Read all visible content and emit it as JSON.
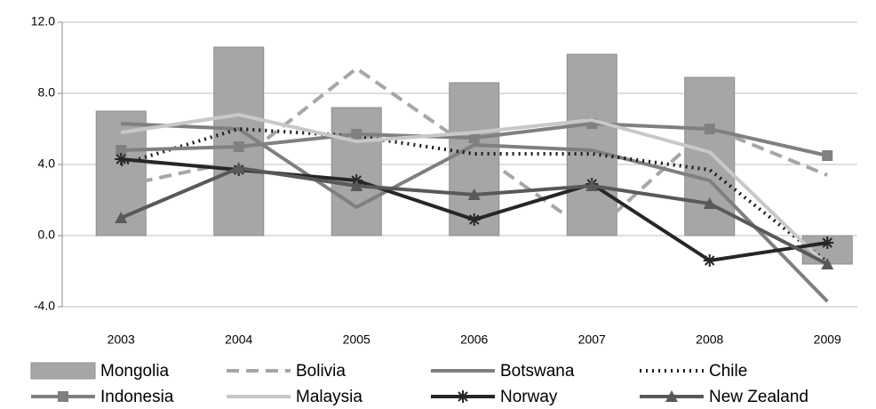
{
  "chart_data": {
    "type": "combo",
    "categories": [
      "2003",
      "2004",
      "2005",
      "2006",
      "2007",
      "2008",
      "2009"
    ],
    "ylim": [
      -4,
      12
    ],
    "yticks": [
      {
        "value": -4,
        "label": "-4.0"
      },
      {
        "value": 0,
        "label": "0.0"
      },
      {
        "value": 4,
        "label": "4.0"
      },
      {
        "value": 8,
        "label": "8.0"
      },
      {
        "value": 12,
        "label": "12.0"
      }
    ],
    "grid": true,
    "legend": "bottom",
    "series": [
      {
        "name": "Mongolia",
        "type": "bar",
        "color": "#a6a6a6",
        "values": [
          7.0,
          10.6,
          7.2,
          8.6,
          10.2,
          8.9,
          -1.6
        ]
      },
      {
        "name": "Bolivia",
        "type": "line",
        "color": "#a6a6a6",
        "dash": "dashed",
        "values": [
          2.8,
          4.2,
          9.4,
          4.8,
          0.1,
          6.1,
          3.4
        ]
      },
      {
        "name": "Botswana",
        "type": "line",
        "color": "#7f7f7f",
        "values": [
          6.3,
          6.0,
          1.6,
          5.1,
          4.8,
          3.1,
          -3.7
        ]
      },
      {
        "name": "Chile",
        "type": "line",
        "color": "#1a1a1a",
        "dash": "dotted",
        "values": [
          4.0,
          6.0,
          5.6,
          4.6,
          4.6,
          3.7,
          -1.5
        ]
      },
      {
        "name": "Indonesia",
        "type": "line",
        "color": "#808080",
        "marker": "square",
        "values": [
          4.8,
          5.0,
          5.7,
          5.5,
          6.3,
          6.0,
          4.5
        ]
      },
      {
        "name": "Malaysia",
        "type": "line",
        "color": "#c8c8c8",
        "values": [
          5.8,
          6.8,
          5.3,
          5.8,
          6.5,
          4.7,
          -1.7
        ]
      },
      {
        "name": "Norway",
        "type": "line",
        "color": "#262626",
        "marker": "star",
        "values": [
          4.3,
          3.7,
          3.1,
          0.9,
          2.9,
          -1.4,
          -0.4
        ]
      },
      {
        "name": "New Zealand",
        "type": "line",
        "color": "#595959",
        "marker": "triangle",
        "values": [
          1.0,
          3.8,
          2.8,
          2.3,
          2.8,
          1.8,
          -1.6
        ]
      }
    ]
  }
}
